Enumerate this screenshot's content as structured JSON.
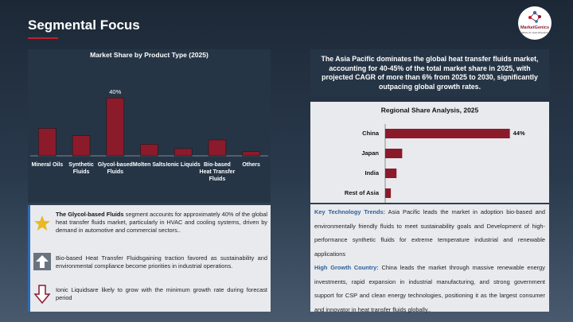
{
  "header": {
    "title": "Segmental Focus",
    "logo": "MarketGenics",
    "logo_tagline": "Where AI meets Research"
  },
  "headline": "The Asia Pacific dominates the global heat transfer fluids market, accounting for 40-45% of the total market share in 2025, with projected CAGR of more than 6% from 2025 to 2030, significantly outpacing global growth rates.",
  "chart_data": [
    {
      "type": "bar",
      "orientation": "vertical",
      "title": "Market Share by Product Type (2025)",
      "categories": [
        "Mineral Oils",
        "Synthetic Fluids",
        "Glycol-based Fluids",
        "Molten Salts",
        "Ionic Liquids",
        "Bio-based Heat Transfer Fluids",
        "Others"
      ],
      "values": [
        19,
        14,
        40,
        8,
        5,
        11,
        3
      ],
      "value_labels": [
        null,
        null,
        "40%",
        null,
        null,
        null,
        null
      ],
      "color": "#8b1a2b",
      "ylim": [
        0,
        50
      ]
    },
    {
      "type": "bar",
      "orientation": "horizontal",
      "title": "Regional Share Analysis, 2025",
      "categories": [
        "China",
        "Japan",
        "India",
        "Rest of Asia"
      ],
      "values": [
        44,
        6,
        4,
        2
      ],
      "value_labels": [
        "44%",
        null,
        null,
        null
      ],
      "color": "#8b1a2b",
      "xlim": [
        0,
        50
      ]
    }
  ],
  "highlights": [
    {
      "bold": "The Glycol-based Fluids",
      "text": " segment accounts for approximately 40% of the global heat transfer fluids market, particularly in HVAC and cooling systems, driven by demand in automotive and commercial sectors.."
    },
    {
      "text": "Bio-based Heat Transfer Fluidsgaining traction favored as sustainability and environmental compliance become priorities in industrial operations."
    },
    {
      "text": "Ionic Liquidsare likely to grow with the minimum growth rate during forecast period"
    }
  ],
  "insights": [
    {
      "label": "Key Technology Trends:",
      "text": "Asia Pacific leads the market in adoption bio-based and environmentally friendly fluids to meet sustainability goals and Development of high-performance synthetic fluids for extreme temperature industrial and renewable applications"
    },
    {
      "label": "High Growth Country:",
      "text": "China leads the market through massive renewable energy investments, rapid expansion in industrial manufacturing, and strong government support for CSP and clean energy technologies, positioning it as the largest consumer and innovator in heat transfer fluids globally.."
    }
  ]
}
